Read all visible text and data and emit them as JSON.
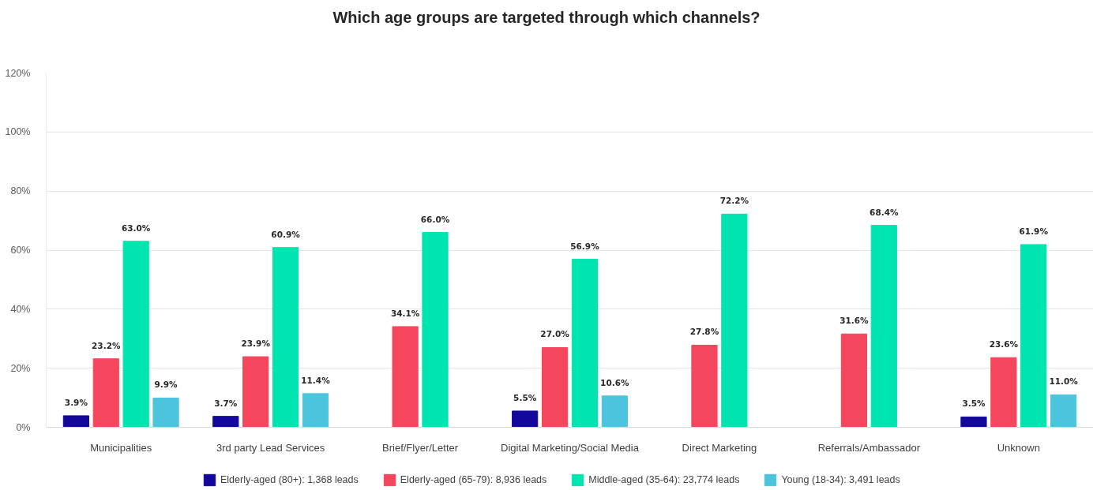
{
  "chart_data": {
    "type": "bar",
    "title": "Which age groups are targeted through which channels?",
    "categories": [
      "Municipalities",
      "3rd party Lead Services",
      "Brief/Flyer/Letter",
      "Digital Marketing/Social Media",
      "Direct Marketing",
      "Referrals/Ambassador",
      "Unknown"
    ],
    "series": [
      {
        "name": "Elderly-aged (80+): 1,368 leads",
        "color": "#14089c",
        "values": [
          3.9,
          3.7,
          null,
          5.5,
          null,
          null,
          3.5
        ],
        "value_labels": [
          "3.9%",
          "3.7%",
          null,
          "5.5%",
          null,
          null,
          "3.5%"
        ]
      },
      {
        "name": "Elderly-aged (65-79): 8,936 leads",
        "color": "#f4475d",
        "values": [
          23.2,
          23.9,
          34.1,
          27.0,
          27.8,
          31.6,
          23.6
        ],
        "value_labels": [
          "23.2%",
          "23.9%",
          "34.1%",
          "27.0%",
          "27.8%",
          "31.6%",
          "23.6%"
        ]
      },
      {
        "name": "Middle-aged (35-64): 23,774 leads",
        "color": "#00e5b0",
        "values": [
          63.0,
          60.9,
          66.0,
          56.9,
          72.2,
          68.4,
          61.9
        ],
        "value_labels": [
          "63.0%",
          "60.9%",
          "66.0%",
          "56.9%",
          "72.2%",
          "68.4%",
          "61.9%"
        ]
      },
      {
        "name": "Young (18-34): 3,491 leads",
        "color": "#4dc4de",
        "values": [
          9.9,
          11.4,
          null,
          10.6,
          null,
          null,
          11.0
        ],
        "value_labels": [
          "9.9%",
          "11.4%",
          null,
          "10.6%",
          null,
          null,
          "11.0%"
        ]
      }
    ],
    "ylim": [
      0,
      120
    ],
    "yticks": [
      {
        "value": 0,
        "label": "0%"
      },
      {
        "value": 20,
        "label": "20%"
      },
      {
        "value": 40,
        "label": "40%"
      },
      {
        "value": 60,
        "label": "60%"
      },
      {
        "value": 80,
        "label": "80%"
      },
      {
        "value": 100,
        "label": "100%"
      },
      {
        "value": 120,
        "label": "120%"
      }
    ],
    "grid": "y",
    "legend": "bottom"
  }
}
